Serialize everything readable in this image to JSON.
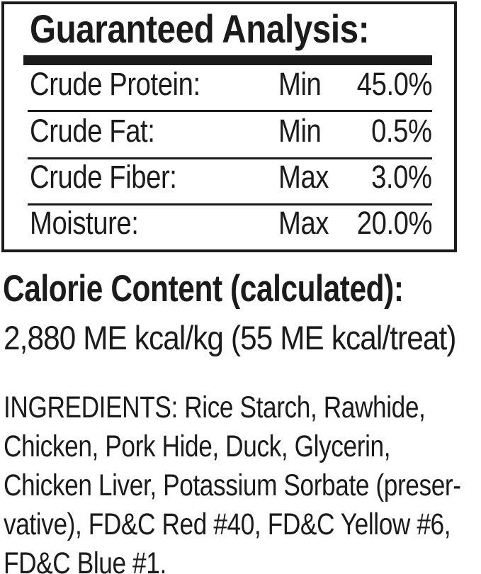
{
  "colors": {
    "text": "#1b1b1b",
    "background": "#ffffff",
    "border": "#1b1b1b"
  },
  "guaranteed_analysis": {
    "title": "Guaranteed Analysis:",
    "rows": [
      {
        "label": "Crude Protein:",
        "qualifier": "Min",
        "value": "45.0%"
      },
      {
        "label": "Crude Fat:",
        "qualifier": "Min",
        "value": "0.5%"
      },
      {
        "label": "Crude Fiber:",
        "qualifier": "Max",
        "value": "3.0%"
      },
      {
        "label": "Moisture:",
        "qualifier": "Max",
        "value": "20.0%"
      }
    ]
  },
  "calorie_content": {
    "heading": "Calorie Content (calculated):",
    "value": "2,880 ME kcal/kg (55 ME kcal/treat)"
  },
  "ingredients": {
    "lines": [
      "INGREDIENTS: Rice Starch, Rawhide,",
      "Chicken, Pork Hide, Duck, Glycerin,",
      "Chicken Liver, Potassium Sorbate (preser-",
      "vative), FD&C Red #40, FD&C Yellow #6,",
      "FD&C Blue #1."
    ]
  }
}
